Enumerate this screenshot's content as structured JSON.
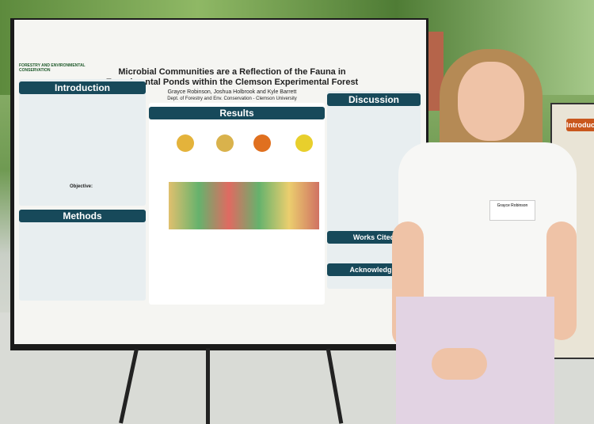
{
  "poster": {
    "department_logo": "FORESTRY AND ENVIRONMENTAL CONSERVATION",
    "title": "Microbial Communities are a Reflection of the Fauna in Experimental Ponds within the Clemson Experimental Forest",
    "authors": "Grayce Robinson, Joshua Holbrook and Kyle Barrett",
    "affiliation": "Dept. of Forestry and Env. Conservation - Clemson University",
    "sections": {
      "introduction": "Introduction",
      "objective": "Objective:",
      "methods": "Methods",
      "results": "Results",
      "discussion": "Discussion",
      "works_cited": "Works Cited",
      "acknowledgements": "Acknowledgm"
    }
  },
  "name_tag": "Grayce Robinson",
  "background_poster": {
    "section": "Introduction"
  }
}
